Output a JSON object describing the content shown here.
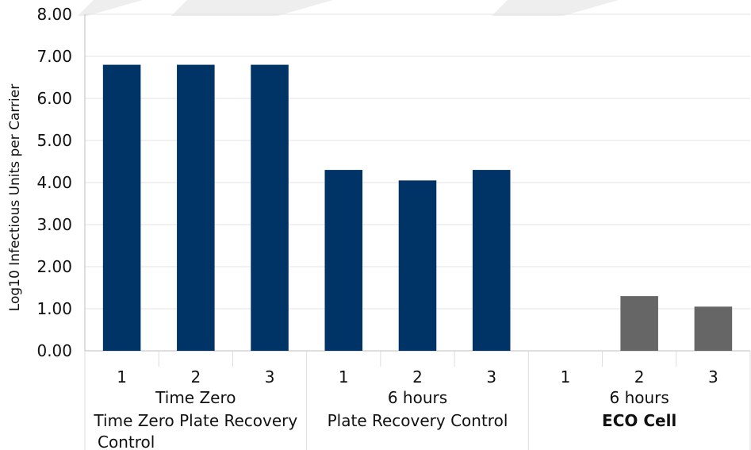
{
  "chart_data": {
    "type": "bar",
    "title": "",
    "xlabel": "",
    "ylabel": "Log10 Infectious Units per Carrier",
    "ylim": [
      0,
      8
    ],
    "yticks": [
      "0.00",
      "1.00",
      "2.00",
      "3.00",
      "4.00",
      "5.00",
      "6.00",
      "7.00",
      "8.00"
    ],
    "grid": true,
    "groups": [
      {
        "line1": "Time Zero",
        "line2": "Time Zero Plate Recovery",
        "line3": "Control",
        "categories": [
          "1",
          "2",
          "3"
        ],
        "values": [
          6.8,
          6.8,
          6.8
        ],
        "color": "#003366"
      },
      {
        "line1": "6 hours",
        "line2": "Plate Recovery Control",
        "line3": "",
        "categories": [
          "1",
          "2",
          "3"
        ],
        "values": [
          4.3,
          4.05,
          4.3
        ],
        "color": "#003366"
      },
      {
        "line1": "6 hours",
        "line2": "ECO Cell",
        "line3": "",
        "categories": [
          "1",
          "2",
          "3"
        ],
        "values": [
          0,
          1.3,
          1.05
        ],
        "color": "#666666"
      }
    ]
  }
}
